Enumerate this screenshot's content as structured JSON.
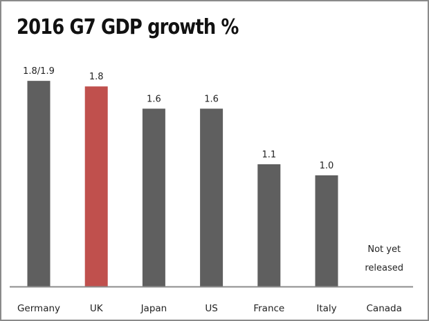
{
  "chart_data": {
    "type": "bar",
    "title": "2016 G7 GDP growth %",
    "categories": [
      "Germany",
      "UK",
      "Japan",
      "US",
      "France",
      "Italy",
      "Canada"
    ],
    "values": [
      1.85,
      1.8,
      1.6,
      1.6,
      1.1,
      1.0,
      null
    ],
    "data_labels": [
      "1.8/1.9",
      "1.8",
      "1.6",
      "1.6",
      "1.1",
      "1.0",
      "Not yet released"
    ],
    "ylim": [
      0,
      2.0
    ],
    "grid": false,
    "colors": {
      "default": "#5f5f5f",
      "highlight": "#c0504d",
      "highlight_category": "UK",
      "axis": "#8c8c8c"
    }
  }
}
